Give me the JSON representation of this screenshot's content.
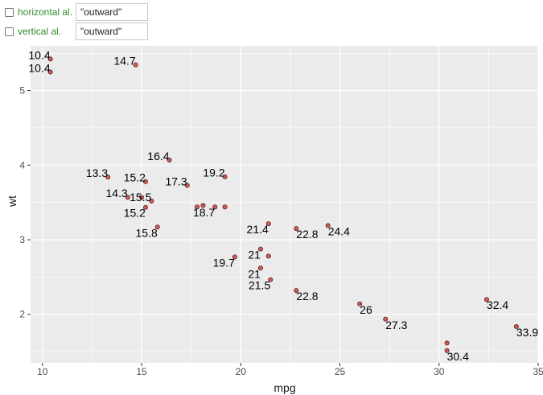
{
  "controls": [
    {
      "label": "horizontal al.",
      "value": "\"outward\""
    },
    {
      "label": "vertical al.",
      "value": "\"outward\""
    }
  ],
  "colors": {
    "panel": "#ebebeb",
    "grid_major": "#ffffff",
    "point_fill": "#cd5c5c",
    "point_stroke": "#5a1f1f",
    "control_label": "#2e8b2e"
  },
  "chart_data": {
    "type": "scatter",
    "xlabel": "mpg",
    "ylabel": "wt",
    "xlim": [
      9.4,
      35.0
    ],
    "ylim": [
      1.35,
      5.6
    ],
    "x_ticks": [
      10,
      15,
      20,
      25,
      30,
      35
    ],
    "y_ticks": [
      2,
      3,
      4,
      5
    ],
    "grid": true,
    "points": [
      {
        "x": 21.0,
        "y": 2.62,
        "label": "21"
      },
      {
        "x": 21.0,
        "y": 2.875,
        "label": "21"
      },
      {
        "x": 22.8,
        "y": 2.32,
        "label": "22.8"
      },
      {
        "x": 21.4,
        "y": 3.215,
        "label": "21.4"
      },
      {
        "x": 18.7,
        "y": 3.44,
        "label": "18.7"
      },
      {
        "x": 18.1,
        "y": 3.46,
        "label": ""
      },
      {
        "x": 14.3,
        "y": 3.57,
        "label": "14.3"
      },
      {
        "x": 24.4,
        "y": 3.19,
        "label": "24.4"
      },
      {
        "x": 22.8,
        "y": 3.15,
        "label": "22.8"
      },
      {
        "x": 19.2,
        "y": 3.44,
        "label": ""
      },
      {
        "x": 17.8,
        "y": 3.44,
        "label": ""
      },
      {
        "x": 16.4,
        "y": 4.07,
        "label": "16.4"
      },
      {
        "x": 17.3,
        "y": 3.73,
        "label": "17.3"
      },
      {
        "x": 15.2,
        "y": 3.78,
        "label": "15.2"
      },
      {
        "x": 10.4,
        "y": 5.25,
        "label": "10.4"
      },
      {
        "x": 10.4,
        "y": 5.424,
        "label": "10.4"
      },
      {
        "x": 14.7,
        "y": 5.345,
        "label": "14.7"
      },
      {
        "x": 32.4,
        "y": 2.2,
        "label": "32.4"
      },
      {
        "x": 30.4,
        "y": 1.615,
        "label": ""
      },
      {
        "x": 33.9,
        "y": 1.835,
        "label": "33.9"
      },
      {
        "x": 21.5,
        "y": 2.465,
        "label": "21.5"
      },
      {
        "x": 15.5,
        "y": 3.52,
        "label": "15.5"
      },
      {
        "x": 15.2,
        "y": 3.435,
        "label": "15.2"
      },
      {
        "x": 13.3,
        "y": 3.84,
        "label": "13.3"
      },
      {
        "x": 19.2,
        "y": 3.845,
        "label": "19.2"
      },
      {
        "x": 27.3,
        "y": 1.935,
        "label": "27.3"
      },
      {
        "x": 26.0,
        "y": 2.14,
        "label": "26"
      },
      {
        "x": 30.4,
        "y": 1.513,
        "label": "30.4"
      },
      {
        "x": 15.8,
        "y": 3.17,
        "label": "15.8"
      },
      {
        "x": 19.7,
        "y": 2.77,
        "label": "19.7"
      },
      {
        "x": 15.0,
        "y": 3.57,
        "label": ""
      },
      {
        "x": 21.4,
        "y": 2.78,
        "label": ""
      }
    ]
  }
}
